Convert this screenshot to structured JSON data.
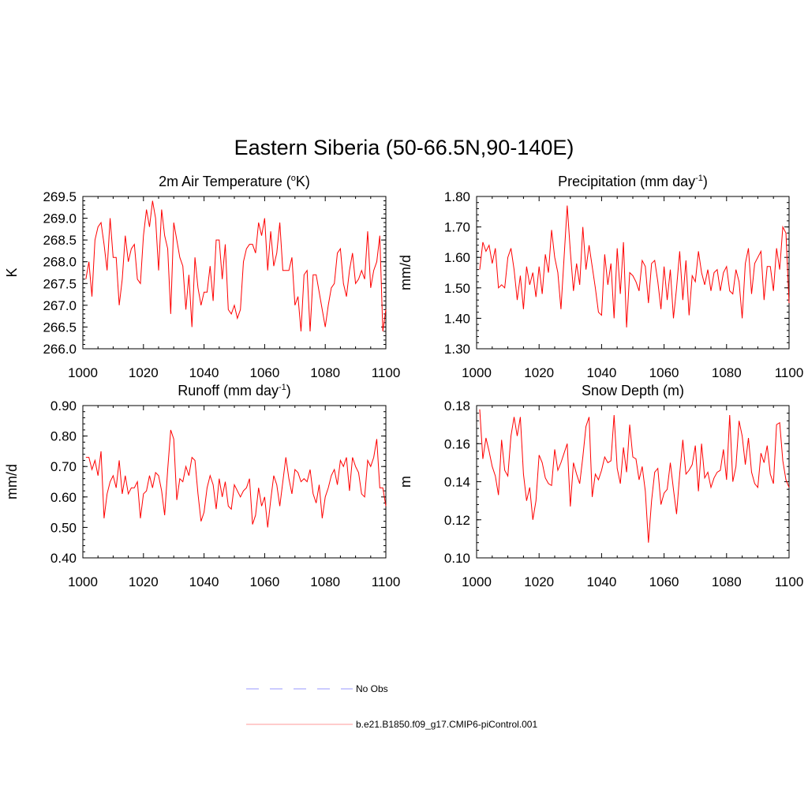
{
  "figure": {
    "title": "Eastern Siberia (50-66.5N,90-140E)"
  },
  "legend": {
    "items": [
      {
        "label": "No Obs",
        "color": "#9999ff",
        "dash": "dashed"
      },
      {
        "label": "b.e21.B1850.f09_g17.CMIP6-piControl.001",
        "color": "#ff9999",
        "dash": "solid"
      }
    ]
  },
  "chart_data": [
    {
      "type": "line",
      "title": "2m Air Temperature (",
      "title_sup": "o",
      "title_after": "K)",
      "ylabel": "K",
      "xlabel": "",
      "xlim": [
        1000,
        1100
      ],
      "ylim": [
        266.0,
        269.5
      ],
      "x_ticks": [
        1000,
        1020,
        1040,
        1060,
        1080,
        1100
      ],
      "y_ticks": [
        "266.0",
        "266.5",
        "267.0",
        "267.5",
        "268.0",
        "268.5",
        "269.0",
        "269.5"
      ],
      "y_minor_step": 0.1,
      "series": [
        {
          "name": "b.e21.B1850.f09_g17.CMIP6-piControl.001",
          "color": "#ff0000",
          "x_start": 1001,
          "x_step": 1,
          "values": [
            267.6,
            268.0,
            267.2,
            268.5,
            268.8,
            268.9,
            268.4,
            267.8,
            269.0,
            268.1,
            268.1,
            267.0,
            267.6,
            268.6,
            268.0,
            268.3,
            268.4,
            267.6,
            267.5,
            268.6,
            269.2,
            268.8,
            269.4,
            269.0,
            267.8,
            269.2,
            268.6,
            268.3,
            266.8,
            268.9,
            268.5,
            268.1,
            267.9,
            266.9,
            267.7,
            266.5,
            268.1,
            267.4,
            267.0,
            267.3,
            267.3,
            267.9,
            267.1,
            268.5,
            268.5,
            267.6,
            268.4,
            266.9,
            266.8,
            267.0,
            266.7,
            266.9,
            268.0,
            268.3,
            268.4,
            268.4,
            268.2,
            268.9,
            268.6,
            269.0,
            267.8,
            268.7,
            267.9,
            268.2,
            268.9,
            267.8,
            267.8,
            267.8,
            268.1,
            267.0,
            267.2,
            266.4,
            267.7,
            267.8,
            266.4,
            267.7,
            267.7,
            267.3,
            266.9,
            266.5,
            267.0,
            267.4,
            267.5,
            268.2,
            268.3,
            267.5,
            267.2,
            267.8,
            268.2,
            267.5,
            267.6,
            267.8,
            267.6,
            268.7,
            267.4,
            267.8,
            268.0,
            268.6,
            266.4,
            266.9
          ]
        }
      ]
    },
    {
      "type": "line",
      "title": "Precipitation (mm day",
      "title_sup": "-1",
      "title_after": ")",
      "ylabel": "mm/d",
      "xlabel": "",
      "xlim": [
        1000,
        1100
      ],
      "ylim": [
        1.3,
        1.8
      ],
      "x_ticks": [
        1000,
        1020,
        1040,
        1060,
        1080,
        1100
      ],
      "y_ticks": [
        "1.30",
        "1.40",
        "1.50",
        "1.60",
        "1.70",
        "1.80"
      ],
      "y_minor_step": 0.02,
      "series": [
        {
          "name": "b.e21.B1850.f09_g17.CMIP6-piControl.001",
          "color": "#ff0000",
          "x_start": 1001,
          "x_step": 1,
          "values": [
            1.56,
            1.65,
            1.62,
            1.64,
            1.58,
            1.63,
            1.5,
            1.51,
            1.5,
            1.6,
            1.63,
            1.56,
            1.46,
            1.54,
            1.43,
            1.57,
            1.51,
            1.55,
            1.47,
            1.57,
            1.48,
            1.61,
            1.55,
            1.69,
            1.6,
            1.55,
            1.43,
            1.6,
            1.77,
            1.62,
            1.49,
            1.58,
            1.51,
            1.7,
            1.56,
            1.64,
            1.57,
            1.5,
            1.42,
            1.41,
            1.61,
            1.51,
            1.58,
            1.4,
            1.63,
            1.48,
            1.65,
            1.37,
            1.55,
            1.54,
            1.52,
            1.49,
            1.59,
            1.57,
            1.45,
            1.58,
            1.59,
            1.52,
            1.43,
            1.57,
            1.46,
            1.56,
            1.4,
            1.5,
            1.62,
            1.46,
            1.59,
            1.41,
            1.54,
            1.52,
            1.62,
            1.55,
            1.51,
            1.56,
            1.49,
            1.55,
            1.56,
            1.49,
            1.55,
            1.57,
            1.49,
            1.48,
            1.56,
            1.52,
            1.4,
            1.58,
            1.63,
            1.48,
            1.58,
            1.6,
            1.62,
            1.46,
            1.57,
            1.57,
            1.49,
            1.63,
            1.56,
            1.7,
            1.68,
            1.45
          ]
        }
      ]
    },
    {
      "type": "line",
      "title": "Runoff (mm day",
      "title_sup": "-1",
      "title_after": ")",
      "ylabel": "mm/d",
      "xlabel": "",
      "xlim": [
        1000,
        1100
      ],
      "ylim": [
        0.4,
        0.9
      ],
      "x_ticks": [
        1000,
        1020,
        1040,
        1060,
        1080,
        1100
      ],
      "y_ticks": [
        "0.40",
        "0.50",
        "0.60",
        "0.70",
        "0.80",
        "0.90"
      ],
      "y_minor_step": 0.02,
      "series": [
        {
          "name": "b.e21.B1850.f09_g17.CMIP6-piControl.001",
          "color": "#ff0000",
          "x_start": 1001,
          "x_step": 1,
          "values": [
            0.73,
            0.73,
            0.69,
            0.72,
            0.67,
            0.75,
            0.53,
            0.61,
            0.65,
            0.67,
            0.63,
            0.72,
            0.61,
            0.67,
            0.61,
            0.63,
            0.63,
            0.65,
            0.53,
            0.61,
            0.62,
            0.67,
            0.63,
            0.68,
            0.67,
            0.62,
            0.54,
            0.69,
            0.82,
            0.79,
            0.59,
            0.66,
            0.65,
            0.7,
            0.67,
            0.73,
            0.72,
            0.61,
            0.52,
            0.55,
            0.63,
            0.67,
            0.64,
            0.56,
            0.66,
            0.6,
            0.65,
            0.57,
            0.56,
            0.64,
            0.62,
            0.6,
            0.62,
            0.63,
            0.66,
            0.51,
            0.54,
            0.63,
            0.57,
            0.6,
            0.5,
            0.59,
            0.67,
            0.64,
            0.57,
            0.65,
            0.73,
            0.66,
            0.61,
            0.69,
            0.68,
            0.65,
            0.66,
            0.65,
            0.69,
            0.61,
            0.58,
            0.64,
            0.53,
            0.6,
            0.63,
            0.67,
            0.69,
            0.64,
            0.72,
            0.7,
            0.73,
            0.62,
            0.73,
            0.7,
            0.68,
            0.61,
            0.6,
            0.72,
            0.7,
            0.73,
            0.79,
            0.63,
            0.63,
            0.57
          ]
        }
      ]
    },
    {
      "type": "line",
      "title": "Snow Depth (m)",
      "title_sup": "",
      "title_after": "",
      "ylabel": "m",
      "xlabel": "",
      "xlim": [
        1000,
        1100
      ],
      "ylim": [
        0.1,
        0.18
      ],
      "x_ticks": [
        1000,
        1020,
        1040,
        1060,
        1080,
        1100
      ],
      "y_ticks": [
        "0.10",
        "0.12",
        "0.14",
        "0.16",
        "0.18"
      ],
      "y_minor_step": 0.004,
      "series": [
        {
          "name": "b.e21.B1850.f09_g17.CMIP6-piControl.001",
          "color": "#ff0000",
          "x_start": 1001,
          "x_step": 1,
          "values": [
            0.178,
            0.152,
            0.163,
            0.156,
            0.148,
            0.143,
            0.133,
            0.162,
            0.146,
            0.143,
            0.164,
            0.174,
            0.164,
            0.174,
            0.144,
            0.13,
            0.137,
            0.12,
            0.13,
            0.154,
            0.15,
            0.142,
            0.139,
            0.138,
            0.157,
            0.146,
            0.15,
            0.155,
            0.16,
            0.127,
            0.15,
            0.144,
            0.139,
            0.153,
            0.169,
            0.174,
            0.132,
            0.144,
            0.141,
            0.146,
            0.153,
            0.15,
            0.151,
            0.175,
            0.147,
            0.139,
            0.158,
            0.145,
            0.17,
            0.153,
            0.152,
            0.141,
            0.148,
            0.135,
            0.108,
            0.13,
            0.145,
            0.147,
            0.128,
            0.134,
            0.136,
            0.15,
            0.136,
            0.123,
            0.144,
            0.162,
            0.144,
            0.146,
            0.149,
            0.159,
            0.135,
            0.16,
            0.142,
            0.145,
            0.137,
            0.142,
            0.145,
            0.146,
            0.157,
            0.141,
            0.175,
            0.14,
            0.148,
            0.172,
            0.164,
            0.149,
            0.163,
            0.145,
            0.139,
            0.137,
            0.155,
            0.15,
            0.159,
            0.144,
            0.139,
            0.17,
            0.171,
            0.151,
            0.141,
            0.137
          ]
        }
      ]
    }
  ]
}
